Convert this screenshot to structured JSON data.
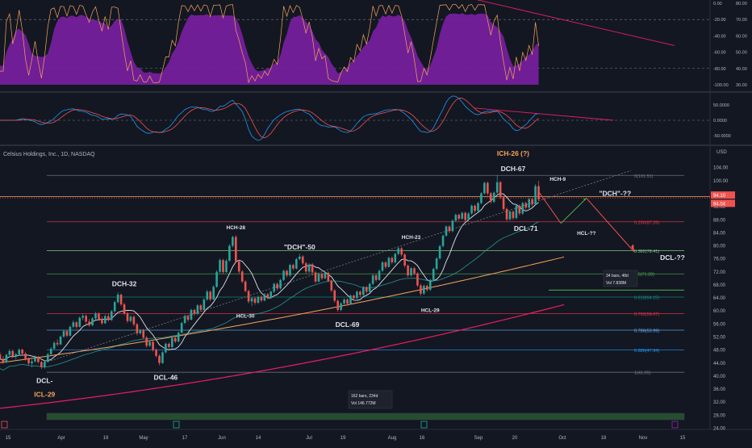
{
  "colors": {
    "bg": "#131722",
    "grid": "#2a2e39",
    "text": "#b2b5be",
    "up": "#26a69a",
    "down": "#ef5350",
    "purple": "#7b1fa2",
    "orange": "#f7a35c",
    "magenta": "#e91e63",
    "white": "#e0e3eb",
    "blue": "#2196f3"
  },
  "header": {
    "symbol": "Celsius Holdings, Inc., 1D, NASDAQ",
    "currency": "USD"
  },
  "oscillator1": {
    "ticks": [
      "0.00",
      "-20.00",
      "-40.00",
      "-60.00",
      "-80.00",
      "-100.00"
    ],
    "right_ticks": [
      "80.00",
      "70.00",
      "60.00",
      "50.00",
      "40.00",
      "30.00"
    ]
  },
  "oscillator2": {
    "ticks": [
      "50.0000",
      "0.0000",
      "-50.0000"
    ]
  },
  "price_axis": {
    "ticks": [
      "104.00",
      "100.00",
      "96.00",
      "92.00",
      "88.00",
      "84.00",
      "80.00",
      "76.00",
      "72.00",
      "68.00",
      "64.00",
      "60.00",
      "56.00",
      "52.00",
      "48.00",
      "44.00",
      "40.00",
      "36.00",
      "32.00",
      "28.00",
      "24.00"
    ],
    "badges": [
      {
        "label": "94.10",
        "value": 94.1,
        "color": "#ef5350"
      },
      {
        "label": "94.04",
        "value": 94.04,
        "color": "#ef5350"
      }
    ]
  },
  "time_axis": {
    "labels": [
      "15",
      "Apr",
      "19",
      "May",
      "17",
      "Jun",
      "14",
      "Jul",
      "19",
      "Aug",
      "16",
      "Sep",
      "20",
      "Oct",
      "18",
      "Nov",
      "15"
    ]
  },
  "fib_levels": [
    {
      "ratio": 0,
      "label": "0(101.51)",
      "price": 101.51,
      "color": "#787b86"
    },
    {
      "ratio": 0.236,
      "label": "0.236(87.26)",
      "price": 87.26,
      "color": "#f23645"
    },
    {
      "ratio": 0.382,
      "label": "0.382(78.41)",
      "price": 78.41,
      "color": "#81c784"
    },
    {
      "ratio": 0.5,
      "label": "0.5(71.28)",
      "price": 71.28,
      "color": "#4caf50"
    },
    {
      "ratio": 0.618,
      "label": "0.618(64.15)",
      "price": 64.15,
      "color": "#089981"
    },
    {
      "ratio": 0.702,
      "label": "0.702(59.07)",
      "price": 59.07,
      "color": "#f23645"
    },
    {
      "ratio": 0.786,
      "label": "0.786(53.99)",
      "price": 53.99,
      "color": "#64b5f6"
    },
    {
      "ratio": 0.886,
      "label": "0.886(47.94)",
      "price": 47.94,
      "color": "#2196f3"
    },
    {
      "ratio": 1,
      "label": "1(41.05)",
      "price": 41.05,
      "color": "#787b86"
    }
  ],
  "annotations": [
    {
      "text": "ICH-26 (?)",
      "color": "#f7a35c",
      "bar": 161,
      "price": 107.5
    },
    {
      "text": "DCH-67",
      "color": "#e0e3eb",
      "bar": 161,
      "price": 102.8
    },
    {
      "text": "HCH-9",
      "color": "#e0e3eb",
      "bar": 175,
      "price": 99.8
    },
    {
      "text": "\"DCH\"-??",
      "color": "#e0e3eb",
      "bar": 193,
      "price": 95.2
    },
    {
      "text": "DCL-71",
      "color": "#e0e3eb",
      "bar": 165,
      "price": 84.5
    },
    {
      "text": "HCL-??",
      "color": "#e0e3eb",
      "bar": 184,
      "price": 83.2
    },
    {
      "text": "DCL-??",
      "color": "#e0e3eb",
      "bar": 211,
      "price": 75.5
    },
    {
      "text": "HCH-28",
      "color": "#e0e3eb",
      "bar": 74,
      "price": 85.0
    },
    {
      "text": "\"DCH\"-50",
      "color": "#e0e3eb",
      "bar": 94,
      "price": 78.8
    },
    {
      "text": "HCH-23",
      "color": "#e0e3eb",
      "bar": 129,
      "price": 82.0
    },
    {
      "text": "DCH-32",
      "color": "#e0e3eb",
      "bar": 39,
      "price": 67.5
    },
    {
      "text": "HCL-30",
      "color": "#e0e3eb",
      "bar": 77,
      "price": 57.8
    },
    {
      "text": "DCL-69",
      "color": "#e0e3eb",
      "bar": 109,
      "price": 55.0
    },
    {
      "text": "HCL-29",
      "color": "#e0e3eb",
      "bar": 135,
      "price": 59.6
    },
    {
      "text": "DCL-46",
      "color": "#e0e3eb",
      "bar": 52,
      "price": 38.8
    },
    {
      "text": "DCL-",
      "color": "#e0e3eb",
      "bar": 14,
      "price": 37.8
    },
    {
      "text": "ICL-29",
      "color": "#f7a35c",
      "bar": 14,
      "price": 33.6
    }
  ],
  "measure_boxes": [
    {
      "line1": "162 bars, 234d",
      "line2": "Vol 146.772M"
    },
    {
      "line1": "34 bars, 48d",
      "line2": "Vol 7.838M"
    }
  ],
  "chart_data": {
    "type": "candlestick",
    "title": "Celsius Holdings, Inc., 1D, NASDAQ",
    "ylim": [
      24,
      110
    ],
    "bar_count_visible": 232,
    "candles_ohlc": [
      [
        46.5,
        47.2,
        44.8,
        45.2
      ],
      [
        45.2,
        46,
        43.6,
        44.2
      ],
      [
        44.2,
        46.8,
        43.8,
        46.4
      ],
      [
        46.4,
        48.2,
        45.8,
        47.6
      ],
      [
        47.6,
        48,
        45.4,
        45.9
      ],
      [
        45.9,
        47,
        45,
        46.6
      ],
      [
        46.6,
        48.4,
        46.1,
        48
      ],
      [
        48,
        48.3,
        46.3,
        46.8
      ],
      [
        46.8,
        47.4,
        44.6,
        45.1
      ],
      [
        45.1,
        45.6,
        43.2,
        43.8
      ],
      [
        43.8,
        45,
        42.6,
        44.4
      ],
      [
        44.4,
        46.2,
        44,
        45.7
      ],
      [
        45.7,
        46.1,
        43.7,
        44.2
      ],
      [
        44.2,
        44.6,
        42.1,
        42.6
      ],
      [
        42.6,
        44.8,
        42.2,
        44.3
      ],
      [
        44.3,
        47,
        44,
        46.6
      ],
      [
        46.6,
        48.8,
        46.2,
        48.3
      ],
      [
        48.3,
        50.6,
        48,
        50.1
      ],
      [
        50.1,
        51.2,
        49,
        49.6
      ],
      [
        49.6,
        52.4,
        49.4,
        52
      ],
      [
        52,
        54.2,
        51.6,
        53.7
      ],
      [
        53.7,
        54.1,
        51.8,
        52.3
      ],
      [
        52.3,
        55.4,
        52,
        55
      ],
      [
        55,
        57,
        54.6,
        56.4
      ],
      [
        56.4,
        56.8,
        54.4,
        55
      ],
      [
        55,
        58.2,
        54.8,
        57.8
      ],
      [
        57.8,
        59,
        57,
        58.4
      ],
      [
        58.4,
        58.8,
        56,
        56.6
      ],
      [
        56.6,
        57.4,
        55,
        55.5
      ],
      [
        55.5,
        58,
        55.2,
        57.6
      ],
      [
        57.6,
        59.6,
        57.2,
        59.1
      ],
      [
        59.1,
        59.5,
        56.9,
        57.4
      ],
      [
        57.4,
        58.2,
        55.6,
        56.1
      ],
      [
        56.1,
        58.8,
        55.9,
        58.3
      ],
      [
        58.3,
        59,
        56.6,
        57.1
      ],
      [
        57.1,
        60.2,
        56.8,
        59.8
      ],
      [
        59.8,
        63,
        59.4,
        62.6
      ],
      [
        62.6,
        65.6,
        62.2,
        64.9
      ],
      [
        64.9,
        65.2,
        61.4,
        61.9
      ],
      [
        61.9,
        62.4,
        58.6,
        59.1
      ],
      [
        59.1,
        59.6,
        56.2,
        56.8
      ],
      [
        56.8,
        58.6,
        56.4,
        58.1
      ],
      [
        58.1,
        58.5,
        55.2,
        55.8
      ],
      [
        55.8,
        56.2,
        52.4,
        53
      ],
      [
        53,
        54.4,
        52.6,
        54
      ],
      [
        54,
        54.4,
        51.2,
        51.7
      ],
      [
        51.7,
        52.2,
        48.6,
        49.2
      ],
      [
        49.2,
        50.8,
        48.8,
        50.4
      ],
      [
        50.4,
        50.8,
        47.4,
        47.9
      ],
      [
        47.9,
        48.4,
        45.6,
        46.1
      ],
      [
        46.1,
        46.6,
        43.2,
        43.9
      ],
      [
        43.9,
        47.6,
        43.6,
        47.2
      ],
      [
        47.2,
        50.2,
        46.8,
        49.8
      ],
      [
        49.8,
        50.2,
        48.2,
        48.8
      ],
      [
        48.8,
        52,
        48.6,
        51.6
      ],
      [
        51.6,
        52,
        50,
        50.5
      ],
      [
        50.5,
        53.6,
        50.2,
        53.2
      ],
      [
        53.2,
        56.6,
        53,
        56.2
      ],
      [
        56.2,
        58.8,
        55.8,
        58.3
      ],
      [
        58.3,
        58.7,
        56.6,
        57.2
      ],
      [
        57.2,
        60.6,
        57,
        60.2
      ],
      [
        60.2,
        60.6,
        58.4,
        59
      ],
      [
        59,
        62,
        58.6,
        61.6
      ],
      [
        61.6,
        62,
        59.6,
        60.2
      ],
      [
        60.2,
        63.8,
        59.8,
        63.4
      ],
      [
        63.4,
        66.4,
        63,
        65.8
      ],
      [
        65.8,
        66.2,
        62.8,
        63.4
      ],
      [
        63.4,
        67.8,
        63.2,
        67.3
      ],
      [
        67.3,
        72.4,
        67,
        71.9
      ],
      [
        71.9,
        76,
        71.4,
        75.5
      ],
      [
        75.5,
        75.9,
        71.2,
        71.8
      ],
      [
        71.8,
        75.8,
        71.6,
        75.3
      ],
      [
        75.3,
        80.4,
        75,
        79.9
      ],
      [
        79.9,
        83,
        79.4,
        82.6
      ],
      [
        82.6,
        83.2,
        74.6,
        75.1
      ],
      [
        75.1,
        75.6,
        71.4,
        72
      ],
      [
        72,
        72.4,
        68.4,
        68.9
      ],
      [
        68.9,
        69.3,
        65.6,
        66
      ],
      [
        66,
        66.4,
        62.2,
        62.8
      ],
      [
        62.8,
        64.2,
        61.4,
        63.8
      ],
      [
        63.8,
        64.2,
        61.8,
        62.4
      ],
      [
        62.4,
        64.6,
        62,
        64.2
      ],
      [
        64.2,
        64.6,
        62.6,
        63.1
      ],
      [
        63.1,
        65.4,
        62.8,
        65
      ],
      [
        65,
        65.4,
        63.4,
        63.9
      ],
      [
        63.9,
        66.2,
        63.6,
        65.8
      ],
      [
        65.8,
        68.6,
        65.4,
        68.2
      ],
      [
        68.2,
        68.6,
        66.2,
        66.8
      ],
      [
        66.8,
        69.8,
        66.4,
        69.4
      ],
      [
        69.4,
        72.6,
        69,
        72.2
      ],
      [
        72.2,
        72.6,
        70.2,
        70.8
      ],
      [
        70.8,
        74.4,
        70.4,
        74
      ],
      [
        74,
        74.4,
        72.4,
        72.9
      ],
      [
        72.9,
        76.2,
        72.6,
        75.8
      ],
      [
        75.8,
        77.4,
        75.4,
        76.6
      ],
      [
        76.6,
        77,
        74,
        74.5
      ],
      [
        74.5,
        75,
        71.4,
        72
      ],
      [
        72,
        74.6,
        71.6,
        74.2
      ],
      [
        74.2,
        74.6,
        71.2,
        71.7
      ],
      [
        71.7,
        72.1,
        68.4,
        68.9
      ],
      [
        68.9,
        71.6,
        68.6,
        71.2
      ],
      [
        71.2,
        71.6,
        69.4,
        69.9
      ],
      [
        69.9,
        72,
        69.6,
        71.6
      ],
      [
        71.6,
        72,
        68.6,
        69.1
      ],
      [
        69.1,
        69.5,
        65.6,
        66.2
      ],
      [
        66.2,
        66.6,
        62.4,
        63
      ],
      [
        63,
        63.4,
        59.6,
        60.2
      ],
      [
        60.2,
        62.6,
        59.8,
        62.2
      ],
      [
        62.2,
        63.8,
        61.8,
        63.4
      ],
      [
        63.4,
        63.8,
        61.6,
        62.1
      ],
      [
        62.1,
        65,
        61.8,
        64.6
      ],
      [
        64.6,
        65,
        63.2,
        63.8
      ],
      [
        63.8,
        66.2,
        63.6,
        65.8
      ],
      [
        65.8,
        66.2,
        64.2,
        64.8
      ],
      [
        64.8,
        67.6,
        64.4,
        67.2
      ],
      [
        67.2,
        67.6,
        65.2,
        65.8
      ],
      [
        65.8,
        68.6,
        65.6,
        68.2
      ],
      [
        68.2,
        71.2,
        67.8,
        70.8
      ],
      [
        70.8,
        71.2,
        68.8,
        69.4
      ],
      [
        69.4,
        72.6,
        69.2,
        72.2
      ],
      [
        72.2,
        75.2,
        71.8,
        74.8
      ],
      [
        74.8,
        75.2,
        72.8,
        73.4
      ],
      [
        73.4,
        76.6,
        73.2,
        76.2
      ],
      [
        76.2,
        76.6,
        74.2,
        74.8
      ],
      [
        74.8,
        77.8,
        74.4,
        77.4
      ],
      [
        77.4,
        79.6,
        77,
        79.1
      ],
      [
        79.1,
        79.5,
        76.6,
        77.2
      ],
      [
        77.2,
        77.6,
        73.2,
        73.8
      ],
      [
        73.8,
        74.2,
        70.2,
        70.8
      ],
      [
        70.8,
        73.4,
        70.4,
        73
      ],
      [
        73,
        73.4,
        70.8,
        71.4
      ],
      [
        71.4,
        71.8,
        67.2,
        67.7
      ],
      [
        67.7,
        68.2,
        64.6,
        65.2
      ],
      [
        65.2,
        68,
        64.8,
        67.6
      ],
      [
        67.6,
        68,
        65.8,
        66.4
      ],
      [
        66.4,
        69.8,
        66,
        69.4
      ],
      [
        69.4,
        73.2,
        69,
        72.8
      ],
      [
        72.8,
        76.4,
        72.4,
        76
      ],
      [
        76,
        80.2,
        75.6,
        79.8
      ],
      [
        79.8,
        83.4,
        79.4,
        83
      ],
      [
        83,
        86.2,
        82.6,
        85.8
      ],
      [
        85.8,
        86.2,
        83.8,
        84.4
      ],
      [
        84.4,
        88,
        84,
        87.6
      ],
      [
        87.6,
        89.8,
        87.2,
        89.4
      ],
      [
        89.4,
        89.8,
        87.6,
        88.2
      ],
      [
        88.2,
        90.4,
        87.8,
        90
      ],
      [
        90,
        90.4,
        87.2,
        87.8
      ],
      [
        87.8,
        90.2,
        87.4,
        89.8
      ],
      [
        89.8,
        92.6,
        89.4,
        92.2
      ],
      [
        92.2,
        92.6,
        90,
        90.6
      ],
      [
        90.6,
        93.4,
        90.2,
        93
      ],
      [
        93,
        96.4,
        92.6,
        96
      ],
      [
        96,
        99.6,
        95.6,
        99.2
      ],
      [
        99.2,
        99.6,
        95.4,
        96
      ],
      [
        96,
        96.4,
        92.8,
        93.4
      ],
      [
        93.4,
        96.6,
        93,
        96.2
      ],
      [
        96.2,
        101.5,
        95.8,
        99.4
      ],
      [
        99.4,
        99.8,
        94.2,
        94.8
      ],
      [
        94.8,
        95.2,
        90.6,
        91.2
      ],
      [
        91.2,
        91.6,
        87.4,
        88
      ],
      [
        88,
        90.8,
        87.6,
        90.4
      ],
      [
        90.4,
        90.8,
        87.8,
        88.4
      ],
      [
        88.4,
        92.6,
        88,
        92.2
      ],
      [
        92.2,
        92.6,
        89.2,
        89.8
      ],
      [
        89.8,
        93.4,
        89.4,
        93
      ],
      [
        93,
        93.4,
        91,
        91.6
      ],
      [
        91.6,
        94.6,
        91.2,
        94.2
      ],
      [
        94.2,
        94.6,
        92,
        92.6
      ],
      [
        92.6,
        98.8,
        92.2,
        98.2
      ],
      [
        98.2,
        99.8,
        93.6,
        94.1
      ]
    ]
  }
}
